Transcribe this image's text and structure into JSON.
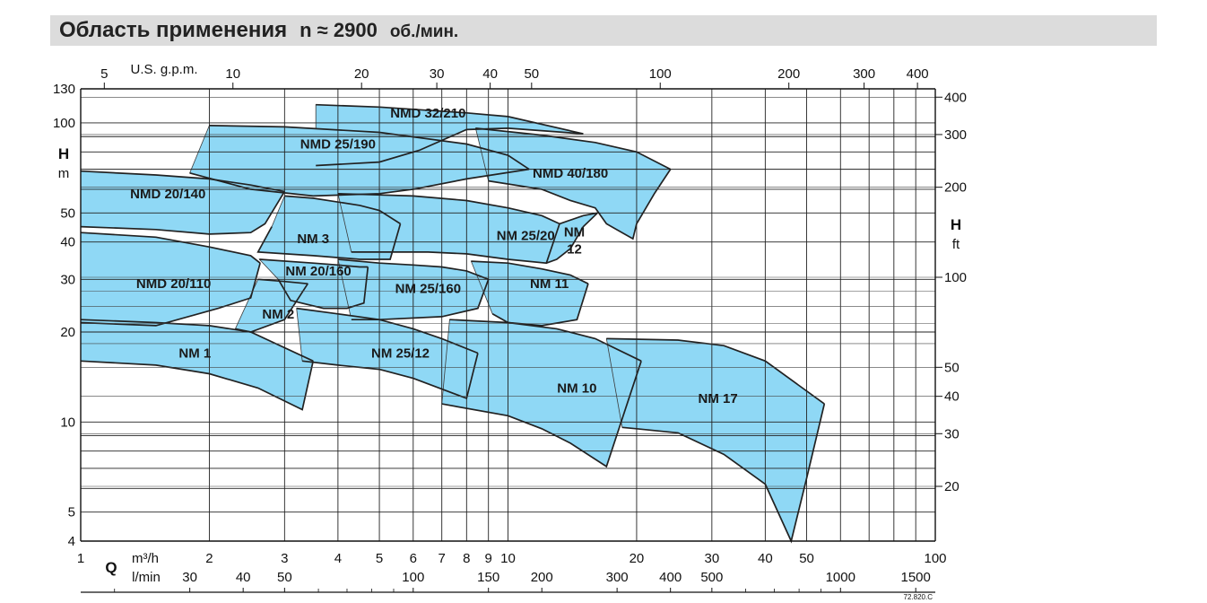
{
  "header": {
    "title": "Область применения",
    "speed": "n ≈ 2900",
    "speed_unit": "об./мин."
  },
  "chart_data": {
    "type": "area",
    "title": "Область применения n ≈ 2900 об./мин.",
    "x_scale": "log",
    "y_scale": "log",
    "xlim": [
      1,
      100
    ],
    "ylim": [
      4,
      130
    ],
    "grid": true,
    "fill_color": "#8fd8f5",
    "axes": {
      "left": {
        "label": "H",
        "unit": "m",
        "ticks": [
          4,
          5,
          10,
          20,
          30,
          40,
          50,
          100,
          130
        ]
      },
      "right": {
        "label": "H",
        "unit": "ft",
        "ticks": [
          20,
          30,
          40,
          50,
          100,
          200,
          300,
          400
        ]
      },
      "top": {
        "unit": "U.S. g.p.m.",
        "ticks": [
          5,
          10,
          20,
          30,
          40,
          50,
          100,
          200,
          300,
          400
        ]
      },
      "bottom_m3h": {
        "label": "Q",
        "unit": "m³/h",
        "ticks": [
          1,
          2,
          3,
          4,
          5,
          6,
          7,
          8,
          9,
          10,
          20,
          30,
          40,
          50,
          100
        ]
      },
      "bottom_lmin": {
        "unit": "l/min",
        "ticks": [
          30,
          40,
          50,
          100,
          150,
          200,
          300,
          400,
          500,
          1000,
          1500
        ]
      }
    },
    "ft_to_m": 0.3048,
    "gpm_to_m3h": 0.22712,
    "lmin_to_m3h": 0.06,
    "code": "72.820.C",
    "regions": [
      {
        "name": "NMD 32/210",
        "top": [
          [
            3.55,
            115
          ],
          [
            5,
            113
          ],
          [
            8,
            108
          ],
          [
            10,
            105
          ],
          [
            15,
            92
          ]
        ],
        "bottom": [
          [
            15,
            92
          ],
          [
            10,
            96
          ],
          [
            8,
            95
          ],
          [
            6.2,
            81
          ],
          [
            5,
            74
          ],
          [
            3.55,
            72
          ]
        ],
        "label_at": [
          6.5,
          108
        ]
      },
      {
        "name": "NMD 25/190",
        "top": [
          [
            2.0,
            98
          ],
          [
            3,
            97
          ],
          [
            5,
            93
          ],
          [
            8,
            85
          ],
          [
            10,
            78
          ],
          [
            11.2,
            70
          ]
        ],
        "bottom": [
          [
            11.2,
            70
          ],
          [
            8,
            65
          ],
          [
            6,
            60
          ],
          [
            5,
            58
          ],
          [
            3.5,
            57
          ],
          [
            2.5,
            60
          ],
          [
            1.8,
            68
          ]
        ],
        "label_at": [
          4.0,
          85
        ]
      },
      {
        "name": "NMD 40/180",
        "top": [
          [
            8.4,
            96
          ],
          [
            12,
            91
          ],
          [
            16,
            86
          ],
          [
            20,
            80
          ],
          [
            24,
            70
          ]
        ],
        "bottom": [
          [
            24,
            70
          ],
          [
            22,
            58
          ],
          [
            20,
            46
          ],
          [
            19.6,
            41
          ],
          [
            17,
            46
          ],
          [
            16,
            52
          ],
          [
            14,
            55
          ],
          [
            12,
            60
          ],
          [
            9,
            64
          ]
        ],
        "label_at": [
          14,
          68
        ]
      },
      {
        "name": "NMD 20/140",
        "top": [
          [
            1,
            69
          ],
          [
            1.5,
            67
          ],
          [
            2,
            65
          ],
          [
            2.5,
            62
          ],
          [
            3,
            59
          ]
        ],
        "bottom": [
          [
            3,
            59
          ],
          [
            2.7,
            46
          ],
          [
            2.5,
            43
          ],
          [
            2.0,
            42.5
          ],
          [
            1.5,
            44
          ],
          [
            1,
            45
          ]
        ],
        "label_at": [
          1.6,
          58
        ]
      },
      {
        "name": "NM 3",
        "top": [
          [
            3,
            57
          ],
          [
            3.5,
            56
          ],
          [
            4.5,
            53
          ],
          [
            5,
            51
          ],
          [
            5.6,
            46
          ]
        ],
        "bottom": [
          [
            5.6,
            46
          ],
          [
            5.3,
            35
          ],
          [
            4.5,
            35
          ],
          [
            3.5,
            36
          ],
          [
            2.6,
            37
          ],
          [
            2.8,
            45
          ]
        ],
        "label_at": [
          3.5,
          41
        ]
      },
      {
        "name": "NM 25/20",
        "top": [
          [
            4.0,
            58
          ],
          [
            6,
            57
          ],
          [
            8,
            55
          ],
          [
            10,
            52
          ],
          [
            12,
            49
          ],
          [
            13.2,
            46
          ]
        ],
        "bottom": [
          [
            13.2,
            46
          ],
          [
            12.3,
            34
          ],
          [
            10,
            35
          ],
          [
            8,
            36.5
          ],
          [
            6.5,
            37
          ],
          [
            5.5,
            37
          ],
          [
            4.3,
            37
          ]
        ],
        "label_at": [
          11,
          42
        ]
      },
      {
        "name": "NM 12",
        "top": [
          [
            13.2,
            46
          ],
          [
            15,
            49
          ],
          [
            16.2,
            50
          ]
        ],
        "bottom": [
          [
            16.2,
            50
          ],
          [
            15,
            45
          ],
          [
            14,
            38
          ],
          [
            13,
            35
          ],
          [
            12.3,
            34
          ]
        ],
        "label_at": [
          14.3,
          39
        ]
      },
      {
        "name": "NMD 20/110",
        "top": [
          [
            1,
            43
          ],
          [
            1.5,
            41.5
          ],
          [
            2,
            38.5
          ],
          [
            2.5,
            36
          ],
          [
            2.63,
            34
          ]
        ],
        "bottom": [
          [
            2.63,
            34
          ],
          [
            2.5,
            26
          ],
          [
            2.1,
            24
          ],
          [
            1.5,
            21
          ],
          [
            1,
            21.5
          ]
        ],
        "label_at": [
          1.65,
          29
        ]
      },
      {
        "name": "NM 20/160",
        "top": [
          [
            2.62,
            35
          ],
          [
            3.5,
            34
          ],
          [
            4.0,
            33.5
          ],
          [
            4.5,
            33
          ],
          [
            4.7,
            33
          ]
        ],
        "bottom": [
          [
            4.7,
            33
          ],
          [
            4.6,
            25
          ],
          [
            4.2,
            24
          ],
          [
            3.7,
            24
          ],
          [
            3.1,
            25.5
          ],
          [
            2.9,
            30
          ]
        ],
        "label_at": [
          3.6,
          32
        ]
      },
      {
        "name": "NM 2",
        "top": [
          [
            2.6,
            30
          ],
          [
            3,
            29.5
          ],
          [
            3.4,
            29
          ]
        ],
        "bottom": [
          [
            3.4,
            29
          ],
          [
            3.0,
            22
          ],
          [
            2.5,
            20
          ],
          [
            2.3,
            20.5
          ]
        ],
        "label_at": [
          2.9,
          23
        ]
      },
      {
        "name": "NM 25/160",
        "top": [
          [
            4.0,
            35
          ],
          [
            5,
            34
          ],
          [
            6,
            33.5
          ],
          [
            7,
            33
          ],
          [
            8,
            32
          ],
          [
            9.0,
            30
          ]
        ],
        "bottom": [
          [
            9.0,
            30
          ],
          [
            8.5,
            24
          ],
          [
            7,
            22.5
          ],
          [
            5,
            22
          ],
          [
            4.3,
            22
          ]
        ],
        "label_at": [
          6.5,
          28
        ]
      },
      {
        "name": "NM 11",
        "top": [
          [
            8.2,
            34.5
          ],
          [
            10,
            34
          ],
          [
            12,
            32.5
          ],
          [
            14,
            31
          ],
          [
            15.4,
            29
          ]
        ],
        "bottom": [
          [
            15.4,
            29
          ],
          [
            14.5,
            22
          ],
          [
            12,
            21
          ],
          [
            10,
            21.5
          ],
          [
            9.2,
            23
          ]
        ],
        "label_at": [
          12.5,
          29
        ]
      },
      {
        "name": "NM 1",
        "top": [
          [
            1,
            22
          ],
          [
            1.5,
            21.5
          ],
          [
            2,
            21
          ],
          [
            2.5,
            20
          ],
          [
            3.5,
            16
          ]
        ],
        "bottom": [
          [
            3.5,
            16
          ],
          [
            3.3,
            11
          ],
          [
            2.6,
            13
          ],
          [
            2,
            14.5
          ],
          [
            1.5,
            15.5
          ],
          [
            1,
            16
          ]
        ],
        "label_at": [
          1.85,
          17
        ]
      },
      {
        "name": "NM 25/12",
        "top": [
          [
            3.2,
            24
          ],
          [
            4,
            23
          ],
          [
            5,
            22
          ],
          [
            6,
            20.5
          ],
          [
            7,
            19
          ],
          [
            8.5,
            17
          ]
        ],
        "bottom": [
          [
            8.5,
            17
          ],
          [
            8,
            12
          ],
          [
            6,
            14
          ],
          [
            5,
            15
          ],
          [
            4,
            15.5
          ],
          [
            3.3,
            16
          ]
        ],
        "label_at": [
          5.6,
          17
        ]
      },
      {
        "name": "NM 10",
        "top": [
          [
            7.3,
            22
          ],
          [
            10,
            21.5
          ],
          [
            13,
            20.5
          ],
          [
            16,
            19
          ],
          [
            20.5,
            16
          ]
        ],
        "bottom": [
          [
            20.5,
            16
          ],
          [
            17,
            7.1
          ],
          [
            14,
            8.5
          ],
          [
            12,
            9.5
          ],
          [
            10,
            10.5
          ],
          [
            7,
            11.5
          ]
        ],
        "label_at": [
          14.5,
          13
        ]
      },
      {
        "name": "NM 17",
        "top": [
          [
            17,
            19
          ],
          [
            25,
            18.8
          ],
          [
            32,
            18
          ],
          [
            40,
            16
          ],
          [
            55,
            11.5
          ]
        ],
        "bottom": [
          [
            55,
            11.5
          ],
          [
            50,
            6.5
          ],
          [
            46,
            4.0
          ],
          [
            40,
            6.2
          ],
          [
            32,
            7.8
          ],
          [
            25,
            9.2
          ],
          [
            20,
            9.5
          ],
          [
            18.5,
            9.6
          ]
        ],
        "label_at": [
          31,
          12
        ]
      }
    ]
  }
}
